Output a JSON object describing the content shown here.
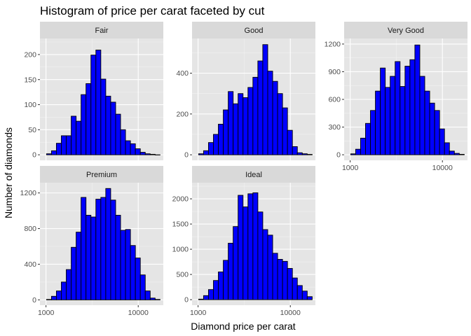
{
  "chart_data": {
    "type": "bar",
    "title": "Histogram of price per carat faceted by cut",
    "xlabel": "Diamond price per carat",
    "ylabel": "Number of diamonds",
    "x_scale": "log10",
    "xlim": [
      860,
      18700
    ],
    "x_ticks": [
      1000,
      10000
    ],
    "x_tick_labels": [
      "1000",
      "10000"
    ],
    "bin_edges": [
      1013,
      1146,
      1296,
      1466,
      1658,
      1876,
      2122,
      2400,
      2715,
      3071,
      3474,
      3930,
      4445,
      5028,
      5688,
      6434,
      7278,
      8233,
      9313,
      10535,
      11917,
      13480,
      15249,
      17250
    ],
    "bar_fill": "#0000ff",
    "bar_outline": "#000000",
    "panel_background": "#e5e5e5",
    "strip_background": "#d9d9d9",
    "grid": true,
    "legend": "none",
    "panels": [
      {
        "name": "Fair",
        "ylim": [
          -11,
          232
        ],
        "y_ticks": [
          0,
          50,
          100,
          150,
          200
        ],
        "y_tick_labels": [
          "0",
          "50",
          "100",
          "150",
          "200"
        ],
        "values": [
          2,
          8,
          23,
          38,
          38,
          77,
          67,
          120,
          142,
          199,
          209,
          151,
          117,
          105,
          81,
          50,
          28,
          22,
          12,
          5,
          2,
          1,
          0
        ]
      },
      {
        "name": "Good",
        "ylim": [
          -27,
          570
        ],
        "y_ticks": [
          0,
          200,
          400
        ],
        "y_tick_labels": [
          "0",
          "200",
          "400"
        ],
        "values": [
          5,
          20,
          60,
          100,
          150,
          220,
          310,
          250,
          300,
          280,
          330,
          380,
          460,
          540,
          410,
          360,
          300,
          230,
          120,
          40,
          10,
          5,
          2
        ]
      },
      {
        "name": "Very Good",
        "ylim": [
          -60,
          1260
        ],
        "y_ticks": [
          0,
          300,
          600,
          900,
          1200
        ],
        "y_tick_labels": [
          "0",
          "300",
          "600",
          "900",
          "1200"
        ],
        "values": [
          10,
          60,
          180,
          340,
          480,
          690,
          940,
          730,
          850,
          1010,
          740,
          960,
          1030,
          1190,
          850,
          690,
          560,
          480,
          280,
          130,
          40,
          15,
          5
        ]
      },
      {
        "name": "Premium",
        "ylim": [
          -60,
          1315
        ],
        "y_ticks": [
          0,
          400,
          800,
          1200
        ],
        "y_tick_labels": [
          "0",
          "400",
          "800",
          "1200"
        ],
        "values": [
          5,
          40,
          100,
          200,
          340,
          590,
          760,
          1150,
          950,
          930,
          1130,
          1150,
          1250,
          1120,
          950,
          780,
          790,
          610,
          470,
          280,
          100,
          20,
          5
        ]
      },
      {
        "name": "Ideal",
        "ylim": [
          -110,
          2320
        ],
        "y_ticks": [
          0,
          500,
          1000,
          1500,
          2000
        ],
        "y_tick_labels": [
          "0",
          "500",
          "1000",
          "1500",
          "2000"
        ],
        "values": [
          10,
          80,
          200,
          380,
          550,
          780,
          1120,
          1450,
          2070,
          1840,
          2100,
          2120,
          1740,
          1390,
          1280,
          920,
          800,
          760,
          620,
          430,
          280,
          170,
          60
        ]
      }
    ]
  }
}
